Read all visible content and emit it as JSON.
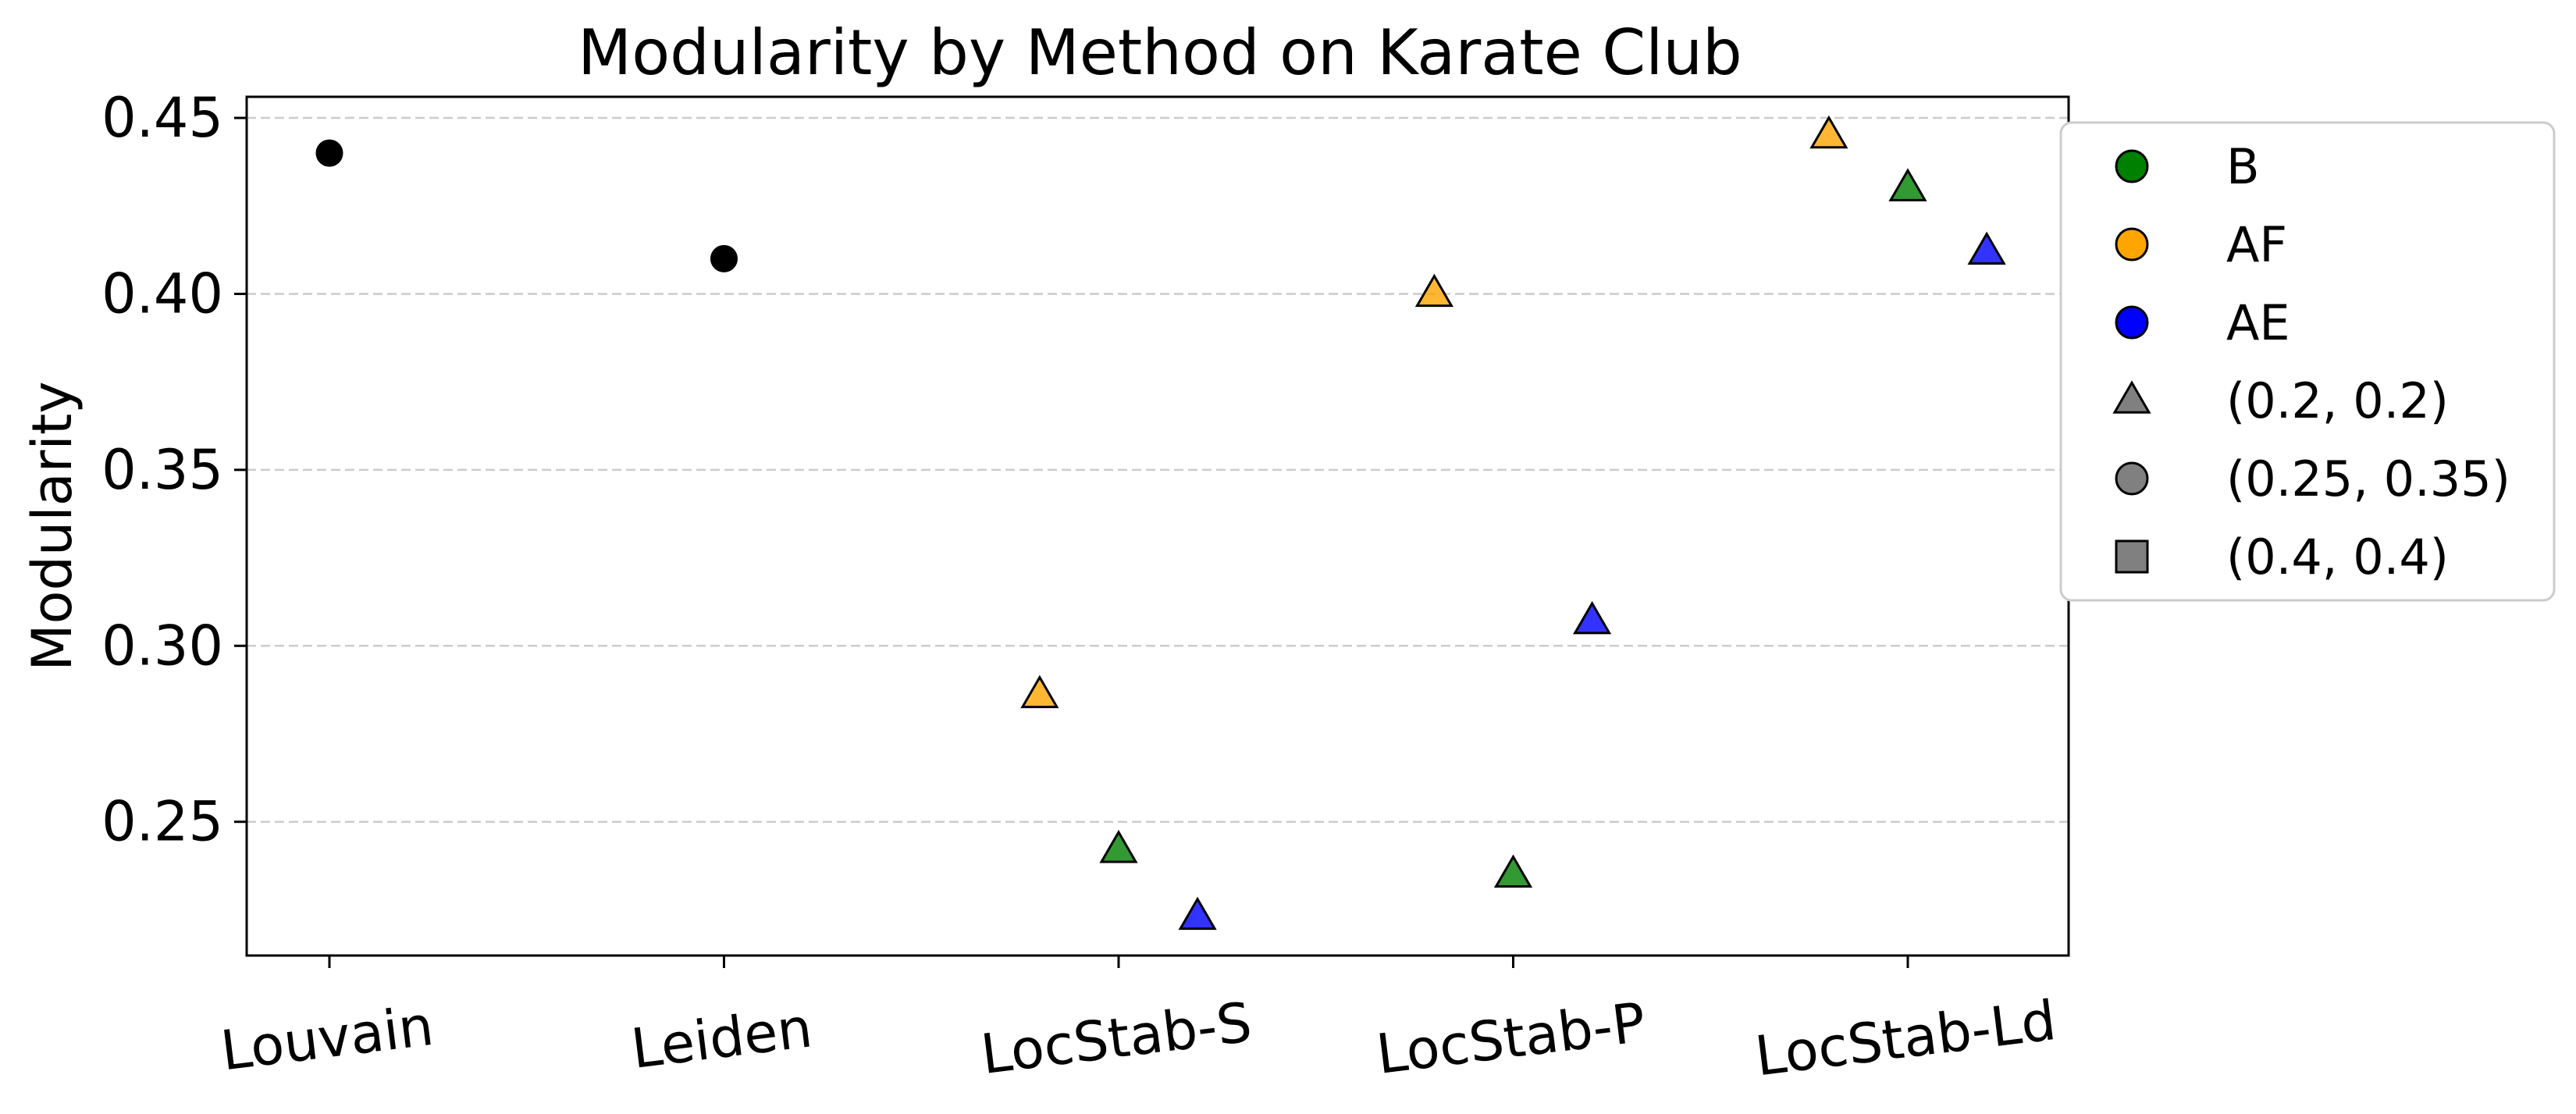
{
  "chart_data": {
    "type": "scatter",
    "title": "Modularity by Method on Karate Club",
    "xlabel": "",
    "ylabel": "Modularity",
    "categories": [
      "Louvain",
      "Leiden",
      "LocStab-S",
      "LocStab-P",
      "LocStab-Ld"
    ],
    "ylim": [
      0.212,
      0.456
    ],
    "yticks": [
      0.25,
      0.3,
      0.35,
      0.4,
      0.45
    ],
    "ytick_labels": [
      "0.25",
      "0.30",
      "0.35",
      "0.40",
      "0.45"
    ],
    "grid": "y-dashed",
    "legend_position": "outside-right",
    "series": [
      {
        "label": "Louvain",
        "color": "#000000",
        "marker": "circle",
        "category_index": 0,
        "offset": 0,
        "y": 0.44
      },
      {
        "label": "Leiden",
        "color": "#000000",
        "marker": "circle",
        "category_index": 1,
        "offset": 0,
        "y": 0.41
      },
      {
        "label": "AF",
        "color": "#ffa500",
        "marker": "triangle",
        "category_index": 2,
        "offset": -0.2,
        "y": 0.286
      },
      {
        "label": "B",
        "color": "#008000",
        "marker": "triangle",
        "category_index": 2,
        "offset": 0.0,
        "y": 0.242
      },
      {
        "label": "AE",
        "color": "#0000ff",
        "marker": "triangle",
        "category_index": 2,
        "offset": 0.2,
        "y": 0.223
      },
      {
        "label": "AF",
        "color": "#ffa500",
        "marker": "triangle",
        "category_index": 3,
        "offset": -0.2,
        "y": 0.4
      },
      {
        "label": "B",
        "color": "#008000",
        "marker": "triangle",
        "category_index": 3,
        "offset": 0.0,
        "y": 0.235
      },
      {
        "label": "AE",
        "color": "#0000ff",
        "marker": "triangle",
        "category_index": 3,
        "offset": 0.2,
        "y": 0.307
      },
      {
        "label": "AF",
        "color": "#ffa500",
        "marker": "triangle",
        "category_index": 4,
        "offset": -0.2,
        "y": 0.445
      },
      {
        "label": "B",
        "color": "#008000",
        "marker": "triangle",
        "category_index": 4,
        "offset": 0.0,
        "y": 0.43
      },
      {
        "label": "AE",
        "color": "#0000ff",
        "marker": "triangle",
        "category_index": 4,
        "offset": 0.2,
        "y": 0.412
      }
    ],
    "legend": [
      {
        "label": "B",
        "marker": "circle",
        "color": "#008000"
      },
      {
        "label": "AF",
        "marker": "circle",
        "color": "#ffa500"
      },
      {
        "label": "AE",
        "marker": "circle",
        "color": "#0000ff"
      },
      {
        "label": "(0.2, 0.2)",
        "marker": "triangle",
        "color": "#808080"
      },
      {
        "label": "(0.25, 0.35)",
        "marker": "circle",
        "color": "#808080"
      },
      {
        "label": "(0.4, 0.4)",
        "marker": "square",
        "color": "#808080"
      }
    ]
  }
}
